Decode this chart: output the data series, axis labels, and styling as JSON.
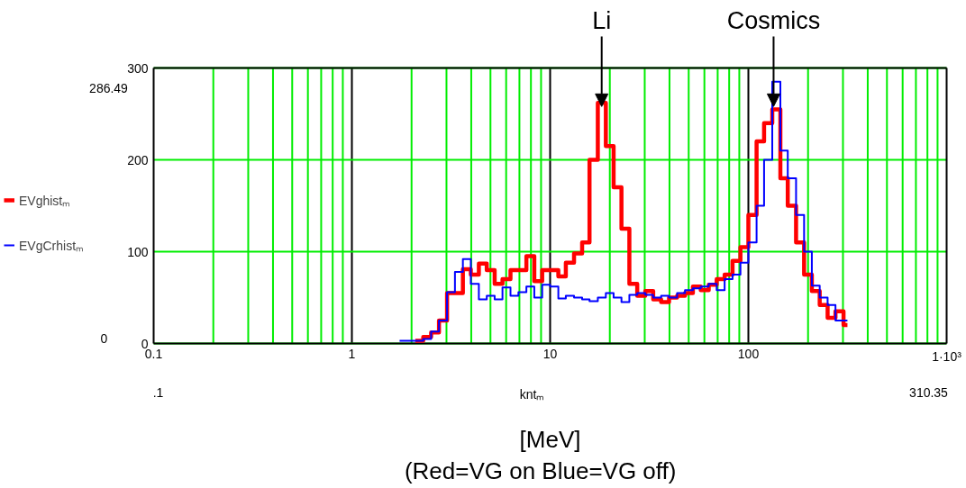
{
  "chart_data": {
    "type": "step",
    "xlabel": "kntₘ",
    "x": [
      1.74,
      1.91,
      2.09,
      2.29,
      2.51,
      2.75,
      3.02,
      3.31,
      3.63,
      3.98,
      4.37,
      4.79,
      5.25,
      5.75,
      6.31,
      6.92,
      7.59,
      8.32,
      9.12,
      10.0,
      11.0,
      12.0,
      13.2,
      14.5,
      15.8,
      17.4,
      19.1,
      20.9,
      22.9,
      25.1,
      27.5,
      30.2,
      33.1,
      36.3,
      39.8,
      43.7,
      47.9,
      52.5,
      57.5,
      63.1,
      69.2,
      75.9,
      83.2,
      91.2,
      100,
      110,
      120,
      132,
      145,
      158,
      174,
      191,
      209,
      229,
      251,
      275,
      302,
      316
    ],
    "series": [
      {
        "name": "EVghistₘ",
        "color": "#ff0000",
        "values": [
          null,
          null,
          3,
          7,
          12,
          25,
          55,
          55,
          81,
          75,
          87,
          80,
          65,
          70,
          80,
          80,
          95,
          68,
          80,
          80,
          73,
          88,
          98,
          110,
          200,
          262,
          215,
          170,
          125,
          65,
          52,
          57,
          48,
          45,
          50,
          52,
          55,
          62,
          58,
          64,
          70,
          75,
          90,
          105,
          140,
          220,
          240,
          255,
          180,
          150,
          110,
          75,
          57,
          42,
          28,
          35,
          20,
          20
        ]
      },
      {
        "name": "EVgCrhistₘ",
        "color": "#0000ff",
        "values": [
          3,
          3,
          3,
          5,
          13,
          25,
          56,
          78,
          92,
          65,
          48,
          52,
          48,
          61,
          52,
          56,
          62,
          50,
          64,
          62,
          49,
          52,
          50,
          48,
          46,
          50,
          55,
          50,
          45,
          53,
          55,
          53,
          50,
          52,
          50,
          55,
          58,
          60,
          62,
          65,
          58,
          70,
          75,
          88,
          110,
          150,
          200,
          285,
          210,
          180,
          140,
          100,
          63,
          50,
          42,
          25,
          25,
          25
        ]
      }
    ],
    "log": "x",
    "xlim": [
      0.1,
      1000
    ],
    "xticks": [
      0.1,
      1,
      10,
      100,
      {
        "value": 1000,
        "label": "1·10³"
      }
    ],
    "ylim": [
      0,
      300
    ],
    "yticks": [
      0,
      100,
      200,
      300
    ],
    "grid": true,
    "legend": "left",
    "annotations": [
      {
        "text": "Li",
        "x": 18.2,
        "y": 258
      },
      {
        "text": "Cosmics",
        "x": 134,
        "y": 258
      },
      "286.49",
      "0",
      ".1",
      "310.35",
      "[MeV]",
      "(Red=VG on    Blue=VG off)"
    ]
  }
}
